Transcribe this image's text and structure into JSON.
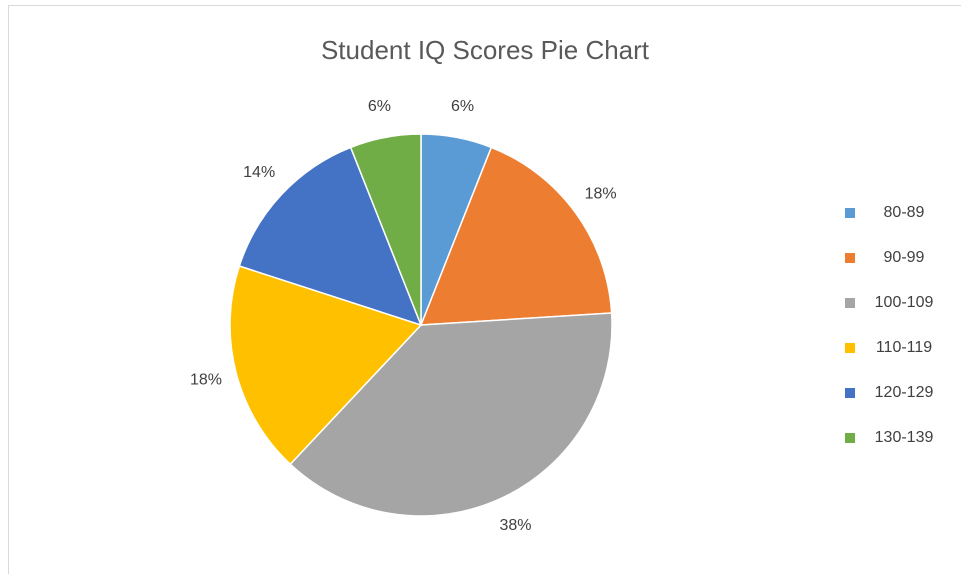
{
  "chart_data": {
    "type": "pie",
    "title": "Student IQ Scores Pie Chart",
    "categories": [
      "80-89",
      "90-99",
      "100-109",
      "110-119",
      "120-129",
      "130-139"
    ],
    "values": [
      6,
      18,
      38,
      18,
      14,
      6
    ],
    "value_labels": [
      "6%",
      "18%",
      "38%",
      "18%",
      "14%",
      "6%"
    ],
    "colors": [
      "#5b9bd5",
      "#ed7d31",
      "#a5a5a5",
      "#ffc000",
      "#4472c4",
      "#70ad47"
    ],
    "legend": "right"
  }
}
